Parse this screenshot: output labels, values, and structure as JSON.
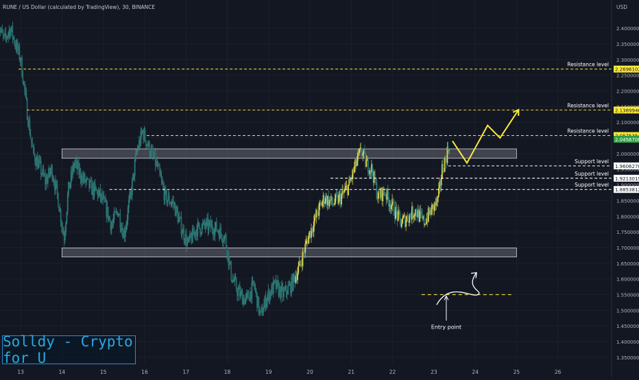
{
  "header": {
    "symbol_line": "RUNE / US Dollar (calculated by TradingView), 30, BINANCE",
    "currency": "USD"
  },
  "watermark": {
    "text": "Solldy - Crypto for U"
  },
  "annotation": {
    "entry_label": "Entry point"
  },
  "colors": {
    "background": "#131722",
    "candle": "#2c7a78",
    "candle_wick": "#3c8a86",
    "level_line": "#e8d83c",
    "support_line": "#ffffff",
    "zone_fill": "#787b86",
    "resistance_tag": "#ffeb3b",
    "support_tag": "#ffffff",
    "current_tag": "#2ea043"
  },
  "chart_data": {
    "type": "candlestick",
    "title": "RUNE / US Dollar (calculated by TradingView), 30, BINANCE",
    "ylabel": "USD",
    "ylim": [
      1.33,
      2.49
    ],
    "y_ticks": [
      "2.4000000",
      "2.3500000",
      "2.3000000",
      "2.2500000",
      "2.2000000",
      "2.1500000",
      "2.1000000",
      "2.0500000",
      "2.0000000",
      "1.9500000",
      "1.9000000",
      "1.8500000",
      "1.8000000",
      "1.7500000",
      "1.7000000",
      "1.6500000",
      "1.6000000",
      "1.5500000",
      "1.5000000",
      "1.4500000",
      "1.4000000",
      "1.3500000"
    ],
    "x_ticks": [
      "13",
      "14",
      "15",
      "16",
      "17",
      "18",
      "19",
      "20",
      "21",
      "22",
      "23",
      "24",
      "25",
      "26"
    ],
    "xlim": [
      12.5,
      27.3
    ],
    "price_path": [
      [
        12.45,
        2.41
      ],
      [
        12.6,
        2.36
      ],
      [
        12.75,
        2.4
      ],
      [
        12.9,
        2.34
      ],
      [
        13.0,
        2.3
      ],
      [
        13.05,
        2.25
      ],
      [
        13.15,
        2.14
      ],
      [
        13.3,
        2.0
      ],
      [
        13.45,
        1.96
      ],
      [
        13.6,
        1.91
      ],
      [
        13.75,
        1.95
      ],
      [
        13.9,
        1.86
      ],
      [
        14.05,
        1.73
      ],
      [
        14.15,
        1.88
      ],
      [
        14.3,
        1.97
      ],
      [
        14.5,
        1.92
      ],
      [
        14.7,
        1.89
      ],
      [
        14.9,
        1.87
      ],
      [
        15.05,
        1.83
      ],
      [
        15.2,
        1.77
      ],
      [
        15.35,
        1.82
      ],
      [
        15.5,
        1.74
      ],
      [
        15.7,
        1.9
      ],
      [
        15.8,
        2.0
      ],
      [
        15.95,
        2.07
      ],
      [
        16.1,
        2.02
      ],
      [
        16.3,
        1.96
      ],
      [
        16.5,
        1.86
      ],
      [
        16.7,
        1.84
      ],
      [
        16.9,
        1.76
      ],
      [
        17.05,
        1.71
      ],
      [
        17.25,
        1.76
      ],
      [
        17.5,
        1.77
      ],
      [
        17.75,
        1.76
      ],
      [
        17.95,
        1.73
      ],
      [
        18.1,
        1.61
      ],
      [
        18.25,
        1.56
      ],
      [
        18.45,
        1.53
      ],
      [
        18.65,
        1.58
      ],
      [
        18.8,
        1.48
      ],
      [
        18.95,
        1.54
      ],
      [
        19.15,
        1.58
      ],
      [
        19.35,
        1.55
      ],
      [
        19.55,
        1.58
      ],
      [
        19.75,
        1.64
      ],
      [
        19.95,
        1.73
      ],
      [
        20.15,
        1.8
      ],
      [
        20.35,
        1.86
      ],
      [
        20.55,
        1.84
      ],
      [
        20.75,
        1.86
      ],
      [
        20.95,
        1.9
      ],
      [
        21.15,
        1.98
      ],
      [
        21.25,
        2.01
      ],
      [
        21.35,
        1.97
      ],
      [
        21.5,
        1.95
      ],
      [
        21.65,
        1.86
      ],
      [
        21.8,
        1.88
      ],
      [
        22.0,
        1.83
      ],
      [
        22.2,
        1.78
      ],
      [
        22.4,
        1.8
      ],
      [
        22.55,
        1.82
      ],
      [
        22.75,
        1.78
      ],
      [
        22.95,
        1.82
      ],
      [
        23.1,
        1.85
      ],
      [
        23.2,
        1.95
      ],
      [
        23.3,
        1.99
      ],
      [
        23.38,
        2.04
      ]
    ],
    "levels": [
      {
        "label": "Resistance level",
        "price": "2.2696102",
        "kind": "resistance",
        "value": 2.2696,
        "from_x": 12.95
      },
      {
        "label": "Resistance level",
        "price": "2.1389946",
        "kind": "resistance",
        "value": 2.139,
        "from_x": 13.15
      },
      {
        "label": "Resistance level",
        "price": "2.0575354",
        "kind": "resistance",
        "value": 2.0575,
        "from_x": 16.05
      },
      {
        "label": "Support level",
        "price": "1.9606270",
        "kind": "support",
        "value": 1.9606,
        "from_x": 23.35
      },
      {
        "label": "Support level",
        "price": "1.9213019",
        "kind": "support",
        "value": 1.9213,
        "from_x": 20.5
      },
      {
        "label": "Support level",
        "price": "1.8853812",
        "kind": "support",
        "value": 1.8854,
        "from_x": 15.15
      }
    ],
    "current_price": "2.0456708",
    "current_value": 2.0457,
    "zones": [
      {
        "from_x": 14.0,
        "to_x": 25.0,
        "top": 2.015,
        "bottom": 1.985
      },
      {
        "from_x": 14.0,
        "to_x": 25.0,
        "top": 1.699,
        "bottom": 1.67
      }
    ],
    "projection": [
      [
        23.45,
        2.04
      ],
      [
        23.8,
        1.97
      ],
      [
        24.3,
        2.09
      ],
      [
        24.6,
        2.05
      ],
      [
        25.05,
        2.14
      ]
    ],
    "entry_sketch": {
      "line_value": 1.55,
      "from_x": 22.7,
      "to_x": 24.9,
      "arrow_x": 23.9,
      "point_x": 23.3
    }
  }
}
